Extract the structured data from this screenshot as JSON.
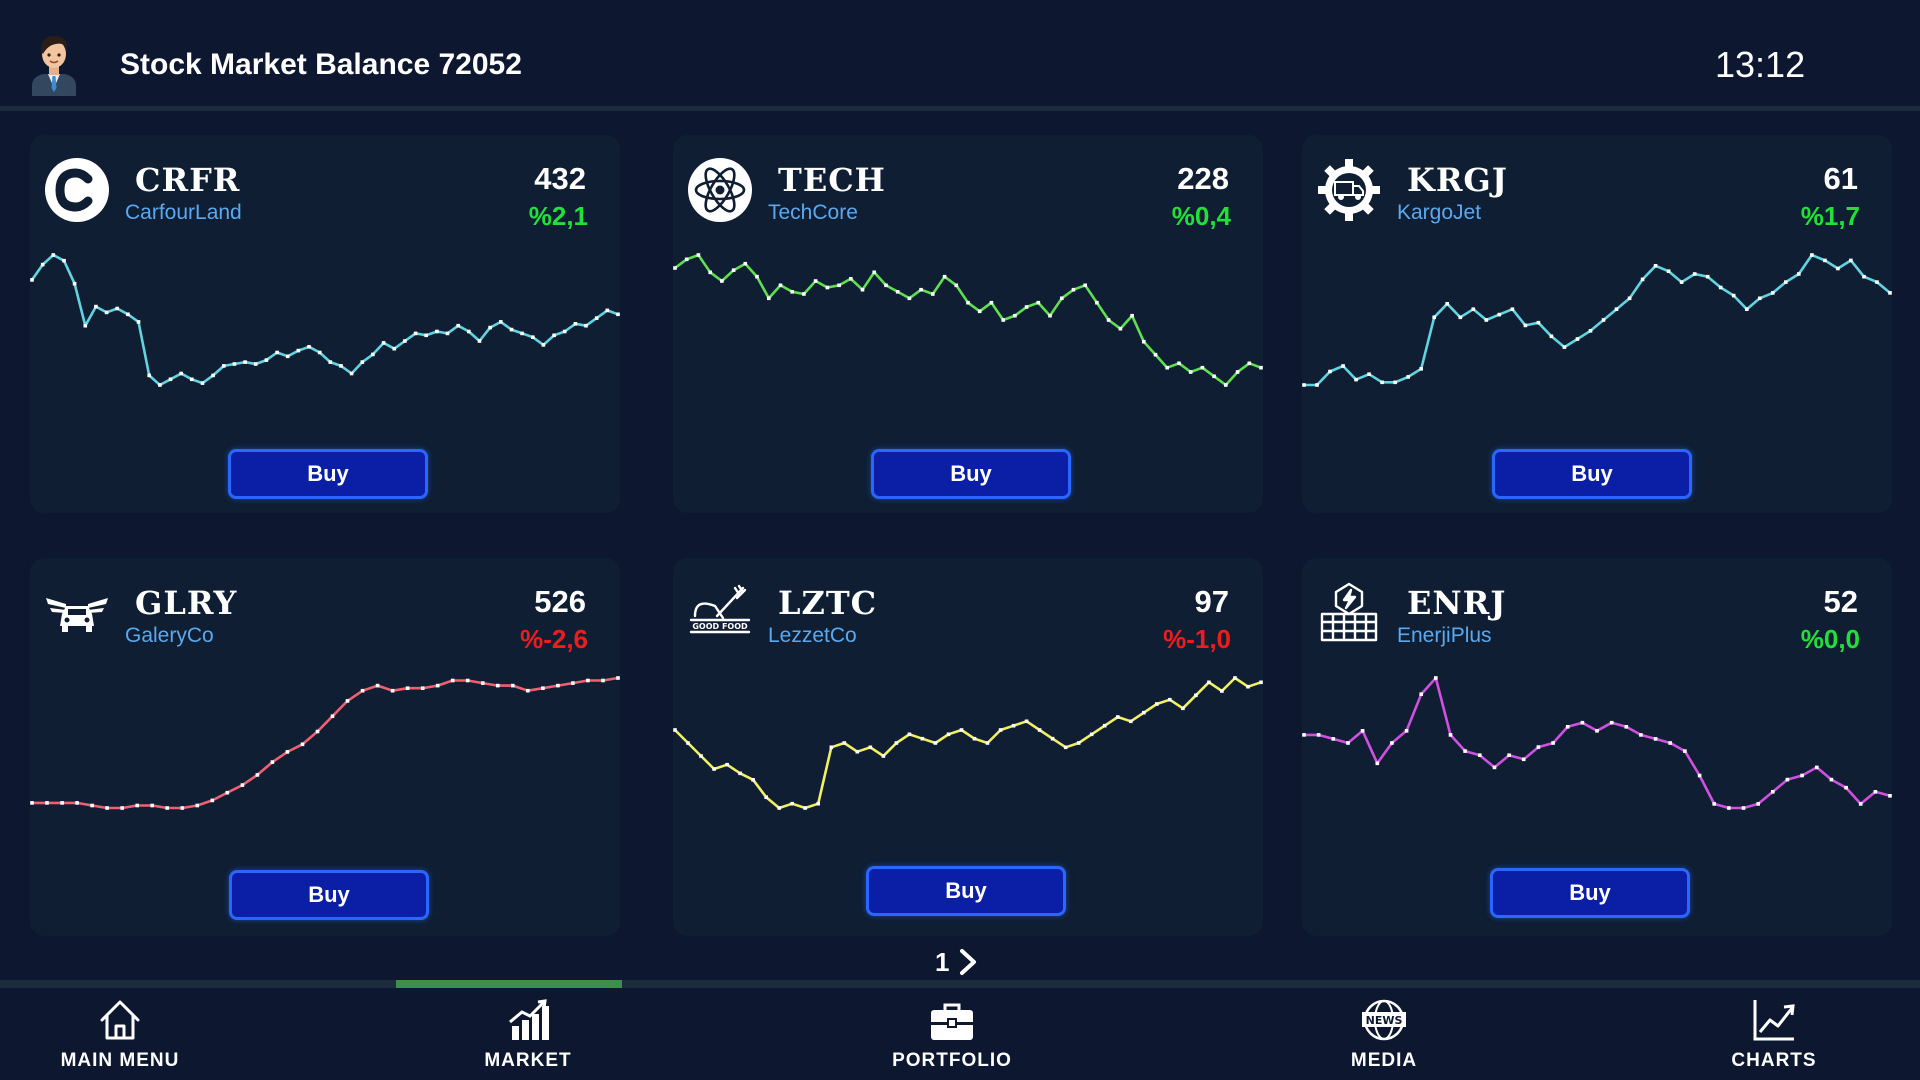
{
  "header": {
    "title": "Stock Market Balance 72052",
    "clock": "13:12",
    "avatar_icon": "user-avatar-icon"
  },
  "cards": [
    {
      "ticker": "CRFR",
      "company": "CarfourLand",
      "price": "432",
      "change": "%2,1",
      "trend": "up",
      "line_color": "#62d4e0",
      "logo_icon": "copyright-c-icon",
      "buy_label": "Buy",
      "series": [
        62,
        70,
        75,
        72,
        60,
        38,
        48,
        45,
        47,
        44,
        40,
        12,
        7,
        10,
        13,
        10,
        8,
        12,
        17,
        18,
        19,
        18,
        20,
        24,
        22,
        25,
        27,
        24,
        19,
        17,
        13,
        19,
        23,
        29,
        26,
        30,
        34,
        33,
        35,
        34,
        38,
        35,
        30,
        37,
        40,
        36,
        34,
        32,
        28,
        33,
        35,
        39,
        38,
        42,
        46,
        44
      ]
    },
    {
      "ticker": "TECH",
      "company": "TechCore",
      "price": "228",
      "change": "%0,4",
      "trend": "up",
      "line_color": "#5fe050",
      "logo_icon": "atom-icon",
      "buy_label": "Buy",
      "series": [
        66,
        70,
        72,
        64,
        60,
        65,
        68,
        62,
        52,
        58,
        55,
        54,
        60,
        57,
        58,
        61,
        56,
        64,
        58,
        55,
        52,
        56,
        54,
        62,
        58,
        50,
        46,
        50,
        42,
        44,
        48,
        50,
        44,
        52,
        56,
        58,
        50,
        42,
        38,
        44,
        32,
        26,
        20,
        22,
        18,
        20,
        16,
        12,
        18,
        22,
        20
      ]
    },
    {
      "ticker": "KRGJ",
      "company": "KargoJet",
      "price": "61",
      "change": "%1,7",
      "trend": "up",
      "line_color": "#62d4e0",
      "logo_icon": "truck-gear-icon",
      "buy_label": "Buy",
      "series": [
        12,
        12,
        17,
        19,
        14,
        16,
        13,
        13,
        15,
        18,
        37,
        42,
        37,
        40,
        36,
        38,
        40,
        34,
        35,
        30,
        26,
        29,
        32,
        36,
        40,
        44,
        51,
        56,
        54,
        50,
        53,
        52,
        48,
        45,
        40,
        44,
        46,
        50,
        53,
        60,
        58,
        55,
        58,
        52,
        50,
        46
      ]
    },
    {
      "ticker": "GLRY",
      "company": "GaleryCo",
      "price": "526",
      "change": "%-2,6",
      "trend": "down",
      "line_color": "#f06070",
      "logo_icon": "winged-car-icon",
      "buy_label": "Buy",
      "series": [
        12,
        12,
        12,
        12,
        11,
        10,
        10,
        11,
        11,
        10,
        10,
        11,
        13,
        16,
        19,
        23,
        28,
        32,
        35,
        40,
        46,
        52,
        56,
        58,
        56,
        57,
        57,
        58,
        60,
        60,
        59,
        58,
        58,
        56,
        57,
        58,
        59,
        60,
        60,
        61
      ]
    },
    {
      "ticker": "LZTC",
      "company": "LezzetCo",
      "price": "97",
      "change": "%-1,0",
      "trend": "down",
      "line_color": "#f0f060",
      "logo_icon": "good-food-icon",
      "buy_label": "Buy",
      "series": [
        48,
        42,
        36,
        30,
        32,
        28,
        25,
        17,
        12,
        14,
        12,
        14,
        40,
        42,
        38,
        40,
        36,
        42,
        46,
        44,
        42,
        46,
        48,
        44,
        42,
        48,
        50,
        52,
        48,
        44,
        40,
        42,
        46,
        50,
        54,
        52,
        56,
        60,
        62,
        58,
        64,
        70,
        66,
        72,
        68,
        70
      ]
    },
    {
      "ticker": "ENRJ",
      "company": "EnerjiPlus",
      "price": "52",
      "change": "%0,0",
      "trend": "up",
      "line_color": "#d050e0",
      "logo_icon": "power-plant-icon",
      "buy_label": "Buy",
      "series": [
        50,
        50,
        48,
        46,
        52,
        36,
        46,
        52,
        70,
        78,
        50,
        42,
        40,
        34,
        40,
        38,
        44,
        46,
        54,
        56,
        52,
        56,
        54,
        50,
        48,
        46,
        42,
        30,
        16,
        14,
        14,
        16,
        22,
        28,
        30,
        34,
        28,
        24,
        16,
        22,
        20
      ]
    }
  ],
  "pager": {
    "page": "1",
    "next_icon": "chevron-right-icon"
  },
  "nav": [
    {
      "label": "MAIN MENU",
      "icon": "home-icon"
    },
    {
      "label": "MARKET",
      "icon": "market-chart-icon"
    },
    {
      "label": "PORTFOLIO",
      "icon": "briefcase-icon"
    },
    {
      "label": "MEDIA",
      "icon": "news-globe-icon"
    },
    {
      "label": "CHARTS",
      "icon": "line-chart-icon"
    }
  ]
}
